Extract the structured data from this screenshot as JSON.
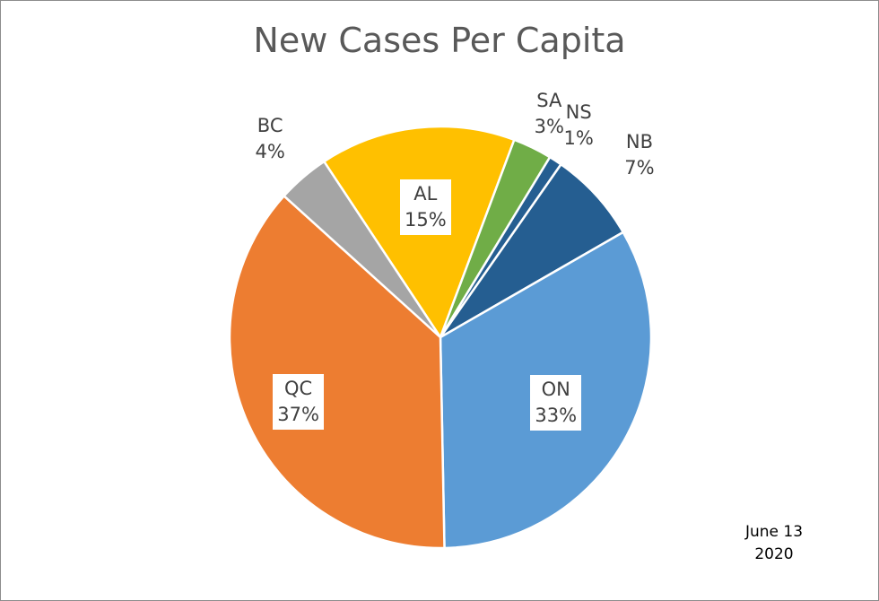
{
  "chart_data": {
    "type": "pie",
    "title": "New Cases Per Capita",
    "categories": [
      "AL",
      "SA",
      "NS",
      "NB",
      "ON",
      "QC",
      "BC"
    ],
    "values": [
      15,
      3,
      1,
      7,
      33,
      37,
      4
    ],
    "percent_labels": [
      "15%",
      "3%",
      "1%",
      "7%",
      "33%",
      "37%",
      "4%"
    ],
    "colors": [
      "#FFC000",
      "#70AD47",
      "#255E91",
      "#255E91",
      "#5B9BD5",
      "#ED7D31",
      "#A5A5A5"
    ],
    "start_angle_deg": -33.5,
    "direction": "clockwise",
    "legend": "none"
  },
  "annotation": {
    "line1": "June 13",
    "line2": "2020"
  }
}
